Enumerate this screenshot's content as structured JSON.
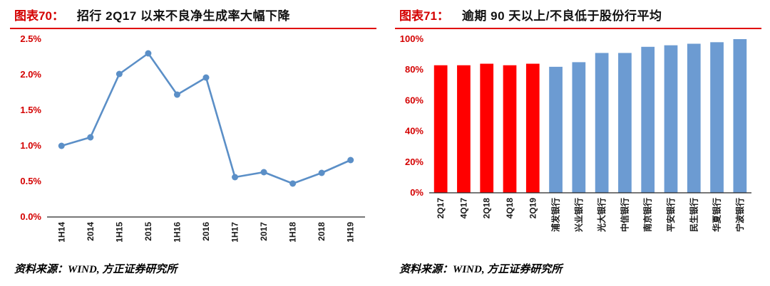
{
  "panels": [
    {
      "label": "图表70：",
      "title": "招行 2Q17 以来不良净生成率大幅下降",
      "source": "资料来源：WIND, 方正证券研究所"
    },
    {
      "label": "图表71：",
      "title": "逾期 90 天以上/不良低于股份行平均",
      "source": "资料来源：WIND, 方正证券研究所"
    }
  ],
  "colors": {
    "figure_label_red": "#d40000",
    "header_rule_red": "#e00000",
    "axis_tick_red": "#d40000",
    "axis_line": "#262626",
    "line_blue": "#5b8fc7",
    "bar_blue": "#6c9bd2",
    "bar_red": "#ff0000"
  },
  "chart_data": [
    {
      "type": "line",
      "title": "招行2Q17以来不良净生成率大幅下降",
      "categories": [
        "1H14",
        "2014",
        "1H15",
        "2015",
        "1H16",
        "2016",
        "1H17",
        "2017",
        "1H18",
        "2018",
        "1H19"
      ],
      "values": [
        1.0,
        1.12,
        2.01,
        2.3,
        1.72,
        1.96,
        0.56,
        0.63,
        0.47,
        0.62,
        0.8
      ],
      "ylim": [
        0,
        2.5
      ],
      "ytick_step": 0.5,
      "ytick_decimals": 1,
      "ytick_suffix": "%",
      "grid": false,
      "legend": "none",
      "line_color": "#5b8fc7",
      "tick_label_color": "#d40000",
      "xlabel": "",
      "ylabel": ""
    },
    {
      "type": "bar",
      "title": "逾期90天以上/不良低于股份行平均",
      "categories": [
        "2Q17",
        "4Q17",
        "2Q18",
        "4Q18",
        "2Q19",
        "浦发银行",
        "兴业银行",
        "光大银行",
        "中信银行",
        "南京银行",
        "平安银行",
        "民生银行",
        "华夏银行",
        "宁波银行"
      ],
      "values": [
        83,
        83,
        84,
        83,
        84,
        82,
        85,
        91,
        91,
        95,
        96,
        97,
        98,
        100
      ],
      "bar_colors": [
        "#ff0000",
        "#ff0000",
        "#ff0000",
        "#ff0000",
        "#ff0000",
        "#6c9bd2",
        "#6c9bd2",
        "#6c9bd2",
        "#6c9bd2",
        "#6c9bd2",
        "#6c9bd2",
        "#6c9bd2",
        "#6c9bd2",
        "#6c9bd2"
      ],
      "ylim": [
        0,
        100
      ],
      "ytick_step": 20,
      "ytick_decimals": 0,
      "ytick_suffix": "%",
      "grid": false,
      "legend": "none",
      "tick_label_color": "#d40000",
      "xlabel": "",
      "ylabel": ""
    }
  ]
}
